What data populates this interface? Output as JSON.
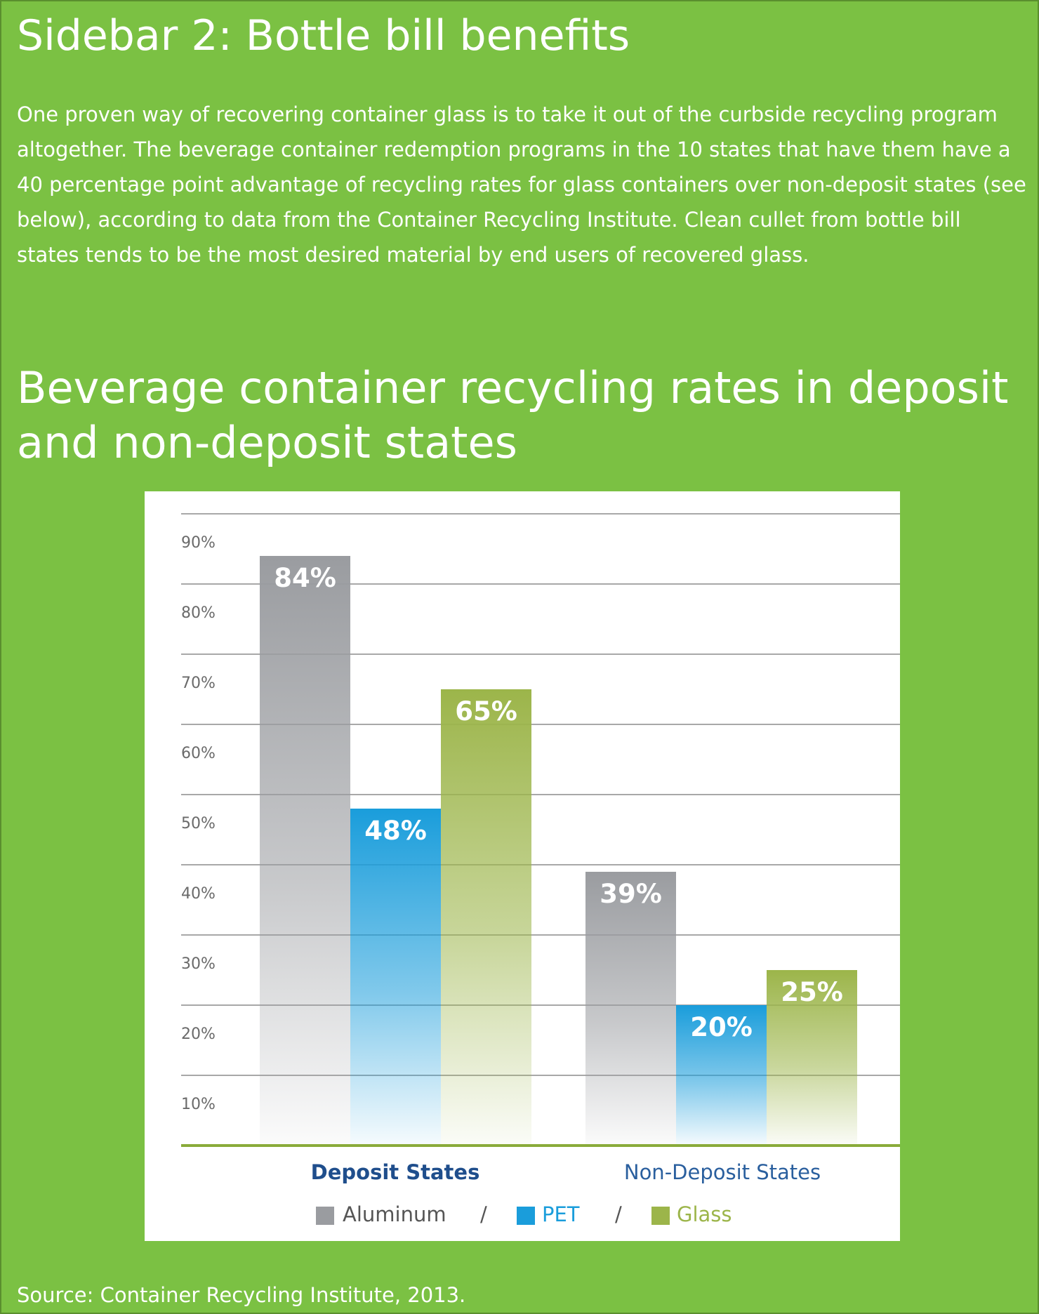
{
  "sidebar": {
    "title": "Sidebar 2: Bottle bill benefits",
    "intro": "One proven way of recovering container glass is to take it out of the curbside recycling program altogether.  The beverage container redemption programs in the 10 states that have them have a 40 percentage point advantage of recycling rates for glass containers over non-deposit states (see below), according to data from the Container Recycling Institute. Clean cullet from bottle bill states tends to be the most desired material by end users of recovered glass.",
    "source": "Source: Container Recycling Institute, 2013."
  },
  "colors": {
    "panel": "#7bc143",
    "aluminum": "#9a9ca0",
    "pet": "#1a9ddb",
    "glass": "#9cb54a",
    "deposit_label": "#1f4e8c",
    "nondeposit_label": "#2a5f9e",
    "baseline": "#8aab3a"
  },
  "chart_data": {
    "type": "bar",
    "title": "Beverage container recycling rates in deposit and non-deposit states",
    "categories": [
      "Deposit States",
      "Non-Deposit States"
    ],
    "series": [
      {
        "name": "Aluminum",
        "values": [
          84,
          39
        ],
        "labels": [
          "84%",
          "39%"
        ]
      },
      {
        "name": "PET",
        "values": [
          48,
          20
        ],
        "labels": [
          "48%",
          "20%"
        ]
      },
      {
        "name": "Glass",
        "values": [
          65,
          25
        ],
        "labels": [
          "65%",
          "25%"
        ]
      }
    ],
    "y_ticks": [
      {
        "value": 10,
        "label": "10%"
      },
      {
        "value": 20,
        "label": "20%"
      },
      {
        "value": 30,
        "label": "30%"
      },
      {
        "value": 40,
        "label": "40%"
      },
      {
        "value": 50,
        "label": "50%"
      },
      {
        "value": 60,
        "label": "60%"
      },
      {
        "value": 70,
        "label": "70%"
      },
      {
        "value": 80,
        "label": "80%"
      },
      {
        "value": 90,
        "label": "90%"
      }
    ],
    "ylim": [
      0,
      90
    ],
    "legend_separator": "/",
    "legend_position": "bottom",
    "grid": true
  }
}
